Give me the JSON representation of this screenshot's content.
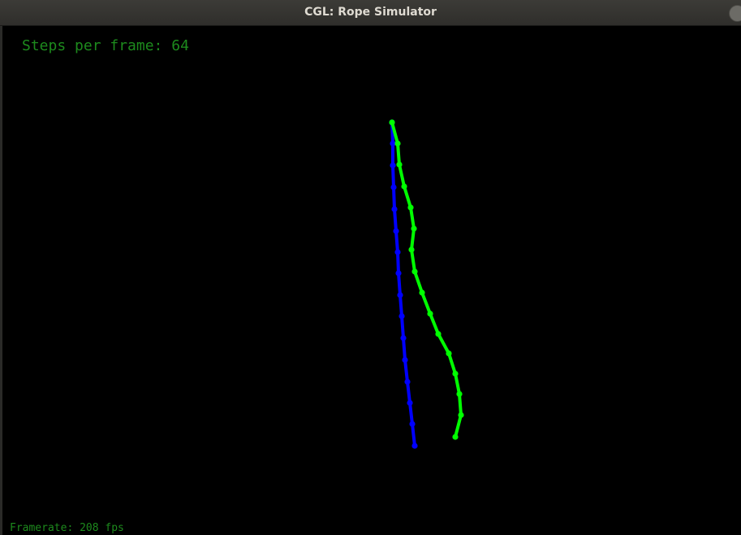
{
  "window": {
    "title": "CGL: Rope Simulator"
  },
  "hud": {
    "steps_label": "Steps per frame: 64",
    "framerate_label": "Framerate: 208 fps"
  },
  "colors": {
    "background": "#000000",
    "hud_text": "#1d8a1d",
    "rope_blue": "#0000ff",
    "rope_green": "#00ff00"
  }
}
